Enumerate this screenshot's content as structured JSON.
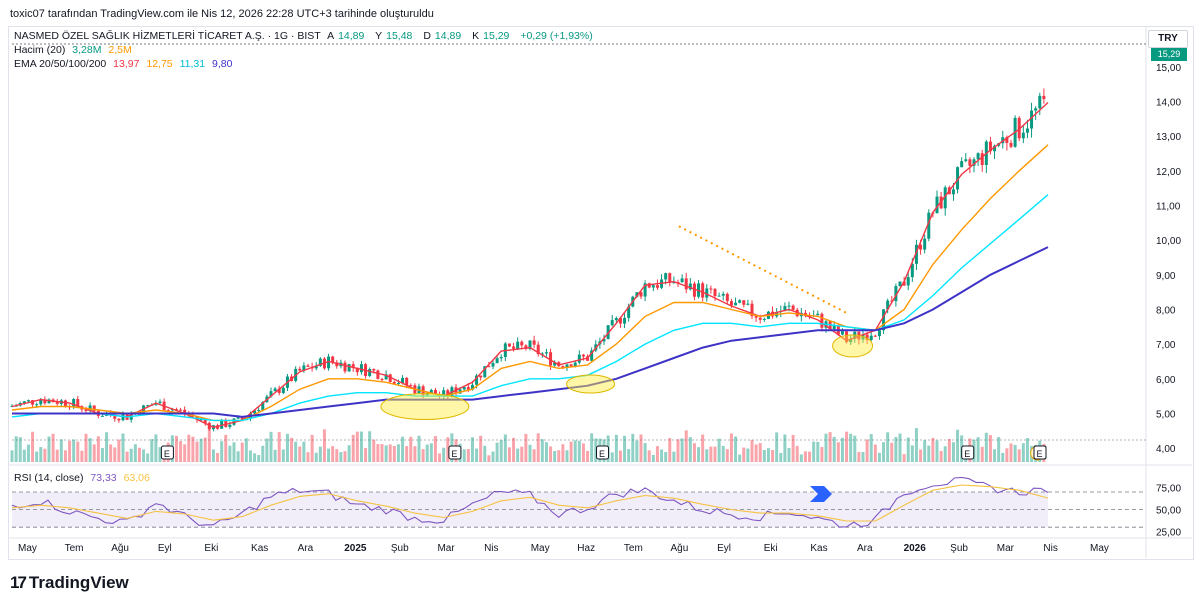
{
  "header": {
    "note": "toxic07 tarafından TradingView.com ile Nis 12, 2026 22:28 UTC+3 tarihinde oluşturuldu"
  },
  "legend": {
    "symbol": "NASMED ÖZEL SAĞLIK HİZMETLERİ TİCARET A.Ş. · 1G · BIST",
    "a_label": "A",
    "a_value": "14,89",
    "y_label": "Y",
    "y_value": "15,48",
    "d_label": "D",
    "d_value": "14,89",
    "k_label": "K",
    "k_value": "15,29",
    "change": "+0,29 (+1,93%)",
    "volume_label": "Hacim (20)",
    "volume_value": "3,28M",
    "volume_ma": "2,5M",
    "ema_label": "EMA 20/50/100/200",
    "ema20": "13,97",
    "ema50": "12,75",
    "ema100": "11,31",
    "ema200": "9,80",
    "rsi_label": "RSI (14, close)",
    "rsi_value": "73,33",
    "rsi_ma": "63,06"
  },
  "currency": "TRY",
  "last_price_label": "15,29",
  "brand": {
    "name": "TradingView"
  },
  "colors": {
    "up": "#089981",
    "down": "#f23645",
    "ema20": "#f23645",
    "ema50": "#ff9800",
    "ema100": "#00e5ff",
    "ema200": "#3f33c7",
    "rsi": "#7e57c2",
    "rsi_ma": "#f5c242",
    "trendline": "#ff9800",
    "highlight": "#ffeb3b"
  },
  "chart_data": [
    {
      "type": "line",
      "subtype": "candlestick",
      "title": "NASMED ÖZEL SAĞLIK HİZMETLERİ TİCARET A.Ş. · 1G · BIST",
      "x_ticks": [
        "May",
        "Tem",
        "Ağu",
        "Eyl",
        "Eki",
        "Kas",
        "Ara",
        "2025",
        "Şub",
        "Mar",
        "Nis",
        "May",
        "Haz",
        "Tem",
        "Ağu",
        "Eyl",
        "Eki",
        "Kas",
        "Ara",
        "2026",
        "Şub",
        "Mar",
        "Nis",
        "May"
      ],
      "y_ticks": [
        "4,00",
        "5,00",
        "6,00",
        "7,00",
        "8,00",
        "9,00",
        "10,00",
        "11,00",
        "12,00",
        "13,00",
        "14,00",
        "15,00"
      ],
      "ylim": [
        3.6,
        15.6
      ],
      "earnings_markers": [
        "E",
        "E",
        "E",
        "E",
        "S",
        "E",
        "E",
        "E",
        "E",
        "E"
      ],
      "series": [
        {
          "name": "EMA 20",
          "values": [
            5.2,
            5.4,
            5.3,
            5.0,
            4.9,
            5.3,
            5.0,
            4.6,
            4.8,
            5.5,
            6.2,
            6.5,
            6.3,
            6.1,
            5.7,
            5.5,
            5.9,
            6.8,
            6.9,
            6.4,
            6.6,
            7.6,
            8.7,
            8.8,
            8.5,
            8.1,
            7.8,
            8.0,
            7.7,
            7.1,
            7.4,
            8.8,
            10.8,
            11.9,
            12.6,
            13.2,
            13.97
          ]
        },
        {
          "name": "EMA 50",
          "values": [
            5.1,
            5.2,
            5.2,
            5.1,
            5.0,
            5.1,
            5.0,
            4.8,
            4.8,
            5.2,
            5.7,
            6.0,
            6.0,
            5.9,
            5.7,
            5.5,
            5.7,
            6.3,
            6.5,
            6.3,
            6.4,
            7.0,
            7.8,
            8.2,
            8.2,
            8.0,
            7.8,
            7.9,
            7.8,
            7.5,
            7.4,
            8.0,
            9.3,
            10.3,
            11.2,
            12.0,
            12.75
          ]
        },
        {
          "name": "EMA 100",
          "values": [
            4.9,
            5.0,
            5.0,
            5.0,
            4.9,
            5.0,
            4.9,
            4.8,
            4.8,
            5.0,
            5.3,
            5.5,
            5.6,
            5.6,
            5.5,
            5.5,
            5.5,
            5.8,
            6.0,
            6.0,
            6.1,
            6.5,
            7.0,
            7.4,
            7.6,
            7.6,
            7.5,
            7.6,
            7.6,
            7.5,
            7.4,
            7.7,
            8.4,
            9.2,
            9.9,
            10.6,
            11.31
          ]
        },
        {
          "name": "EMA 200",
          "values": [
            5.0,
            5.0,
            5.0,
            5.0,
            5.0,
            5.0,
            5.0,
            5.0,
            4.9,
            5.0,
            5.1,
            5.2,
            5.3,
            5.4,
            5.4,
            5.4,
            5.4,
            5.5,
            5.6,
            5.7,
            5.8,
            6.0,
            6.3,
            6.6,
            6.9,
            7.1,
            7.2,
            7.3,
            7.4,
            7.4,
            7.4,
            7.6,
            8.0,
            8.5,
            9.0,
            9.4,
            9.8
          ]
        }
      ],
      "x": [
        "May",
        "",
        "Tem",
        "Ağu",
        "",
        "Eyl",
        "Eki",
        "",
        "Kas",
        "Ara",
        "",
        "2025",
        "Şub",
        "",
        "Mar",
        "",
        "Nis",
        "",
        "May",
        "",
        "Haz",
        "Tem",
        "",
        "Ağu",
        "",
        "Eyl",
        "",
        "Eki",
        "",
        "Kas",
        "Ara",
        "2026",
        "",
        "Şub",
        "",
        "Mar",
        "Nis"
      ]
    },
    {
      "type": "line",
      "title": "RSI (14, close)",
      "y_ticks": [
        "25,00",
        "50,00",
        "75,00"
      ],
      "ylim": [
        20,
        95
      ],
      "bands": [
        30,
        70
      ],
      "series": [
        {
          "name": "RSI",
          "values": [
            55,
            60,
            48,
            40,
            35,
            58,
            42,
            30,
            45,
            65,
            72,
            68,
            55,
            50,
            40,
            38,
            55,
            70,
            66,
            45,
            52,
            68,
            72,
            60,
            50,
            45,
            42,
            48,
            40,
            32,
            38,
            70,
            80,
            82,
            75,
            70,
            73.33
          ]
        },
        {
          "name": "RSI MA",
          "values": [
            52,
            55,
            52,
            46,
            40,
            48,
            45,
            38,
            42,
            55,
            65,
            68,
            60,
            54,
            46,
            41,
            48,
            60,
            64,
            55,
            52,
            60,
            66,
            63,
            56,
            50,
            46,
            46,
            43,
            37,
            37,
            55,
            72,
            78,
            76,
            72,
            63.06
          ]
        }
      ]
    }
  ]
}
